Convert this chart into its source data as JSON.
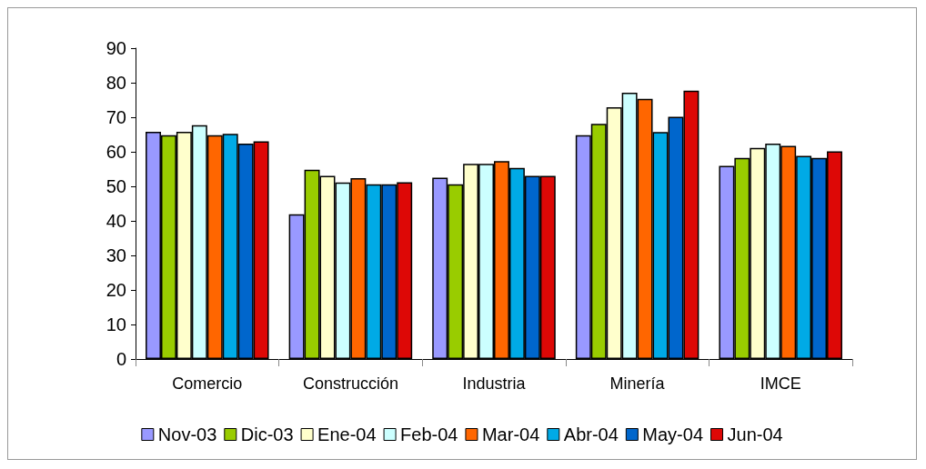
{
  "chart_data": {
    "type": "bar",
    "categories": [
      "Comercio",
      "Construcción",
      "Industria",
      "Minería",
      "IMCE"
    ],
    "series": [
      {
        "name": "Nov-03",
        "color": "#9999ff",
        "values": [
          65.8,
          41.9,
          52.5,
          64.8,
          55.9
        ]
      },
      {
        "name": "Dic-03",
        "color": "#99cc00",
        "values": [
          64.8,
          54.8,
          50.6,
          68.1,
          58.2
        ]
      },
      {
        "name": "Ene-04",
        "color": "#ffffcc",
        "values": [
          65.8,
          53,
          56.5,
          72.9,
          61.1
        ]
      },
      {
        "name": "Feb-04",
        "color": "#ccffff",
        "values": [
          67.7,
          51.1,
          56.5,
          77.1,
          62.4
        ]
      },
      {
        "name": "Mar-04",
        "color": "#ff6600",
        "values": [
          64.8,
          52.4,
          57.3,
          75.3,
          61.7
        ]
      },
      {
        "name": "Abr-04",
        "color": "#00aae6",
        "values": [
          65.2,
          50.6,
          55.3,
          65.7,
          58.8
        ]
      },
      {
        "name": "May-04",
        "color": "#0066cc",
        "values": [
          62.4,
          50.6,
          53,
          70.1,
          58.2
        ]
      },
      {
        "name": "Jun-04",
        "color": "#dd0806",
        "values": [
          63,
          51.2,
          53,
          77.7,
          60.1
        ]
      }
    ],
    "ylim": [
      0,
      90
    ],
    "yticks": [
      0,
      10,
      20,
      30,
      40,
      50,
      60,
      70,
      80,
      90
    ],
    "grid": false,
    "legend": "bottom"
  }
}
